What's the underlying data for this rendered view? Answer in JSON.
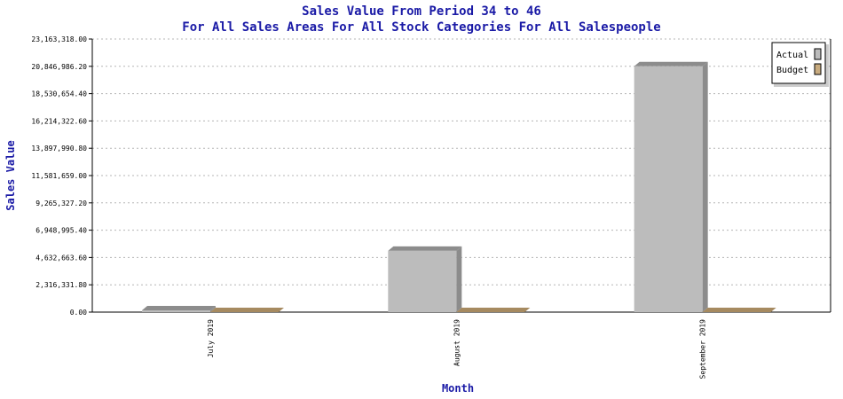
{
  "title": "Sales Value From Period 34 to 46",
  "subtitle": "For All Sales Areas For All Stock Categories For All Salespeople",
  "colors": {
    "title": "#1a1aa6",
    "actual_front": "#bcbcbc",
    "actual_side": "#8c8c8c",
    "budget_front": "#c8ab7f",
    "budget_side": "#a68a60",
    "grid": "#b5b5b5"
  },
  "chart_data": {
    "type": "bar",
    "xlabel": "Month",
    "ylabel": "Sales Value",
    "categories": [
      "July 2019",
      "August 2019",
      "September 2019"
    ],
    "series": [
      {
        "name": "Actual",
        "values": [
          150000,
          5200000,
          20846986.2
        ]
      },
      {
        "name": "Budget",
        "values": [
          0,
          0,
          0
        ]
      }
    ],
    "ylim": [
      0,
      23163318.0
    ],
    "yticks": [
      "0.00",
      "2,316,331.80",
      "4,632,663.60",
      "6,948,995.40",
      "9,265,327.20",
      "11,581,659.00",
      "13,897,990.80",
      "16,214,322.60",
      "18,530,654.40",
      "20,846,986.20",
      "23,163,318.00"
    ],
    "grid": true,
    "legend": "top-right"
  }
}
